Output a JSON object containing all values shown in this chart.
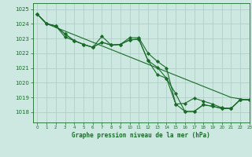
{
  "xlabel": "Graphe pression niveau de la mer (hPa)",
  "ylim": [
    1017.3,
    1025.4
  ],
  "xlim": [
    -0.5,
    23
  ],
  "xticks": [
    0,
    1,
    2,
    3,
    4,
    5,
    6,
    7,
    8,
    9,
    10,
    11,
    12,
    13,
    14,
    15,
    16,
    17,
    18,
    19,
    20,
    21,
    22,
    23
  ],
  "yticks": [
    1018,
    1019,
    1020,
    1021,
    1022,
    1023,
    1024,
    1025
  ],
  "bg_color": "#cce8e0",
  "grid_color": "#aaccc0",
  "line_color": "#1a6b2a",
  "line_straight": [
    1024.65,
    1024.0,
    1023.75,
    1023.5,
    1023.25,
    1023.0,
    1022.75,
    1022.5,
    1022.25,
    1022.0,
    1021.75,
    1021.5,
    1021.25,
    1021.0,
    1020.75,
    1020.5,
    1020.25,
    1020.0,
    1019.75,
    1019.5,
    1019.25,
    1019.0,
    1018.9,
    1018.8
  ],
  "line_a": [
    1024.65,
    1024.0,
    1023.85,
    1023.1,
    1022.85,
    1022.6,
    1022.4,
    1022.75,
    1022.55,
    1022.6,
    1023.05,
    1023.05,
    1022.0,
    1021.45,
    1021.0,
    1018.55,
    1018.6,
    1018.95,
    1018.75,
    1018.55,
    1018.3,
    1018.25,
    1018.85,
    1018.85
  ],
  "line_b": [
    1024.65,
    1024.0,
    1023.85,
    1023.3,
    1022.85,
    1022.6,
    1022.4,
    1022.75,
    1022.55,
    1022.6,
    1022.9,
    1022.95,
    1021.5,
    1021.05,
    1020.3,
    1019.25,
    1018.05,
    1018.05,
    1018.5,
    1018.4,
    1018.25,
    1018.25,
    1018.85,
    1018.85
  ],
  "line_c": [
    1024.65,
    1024.0,
    1023.85,
    1023.3,
    1022.85,
    1022.6,
    1022.4,
    1023.15,
    1022.55,
    1022.6,
    1022.9,
    1022.95,
    1021.5,
    1020.55,
    1020.3,
    1018.55,
    1018.05,
    1018.05,
    1018.5,
    1018.4,
    1018.25,
    1018.25,
    1018.85,
    1018.85
  ]
}
